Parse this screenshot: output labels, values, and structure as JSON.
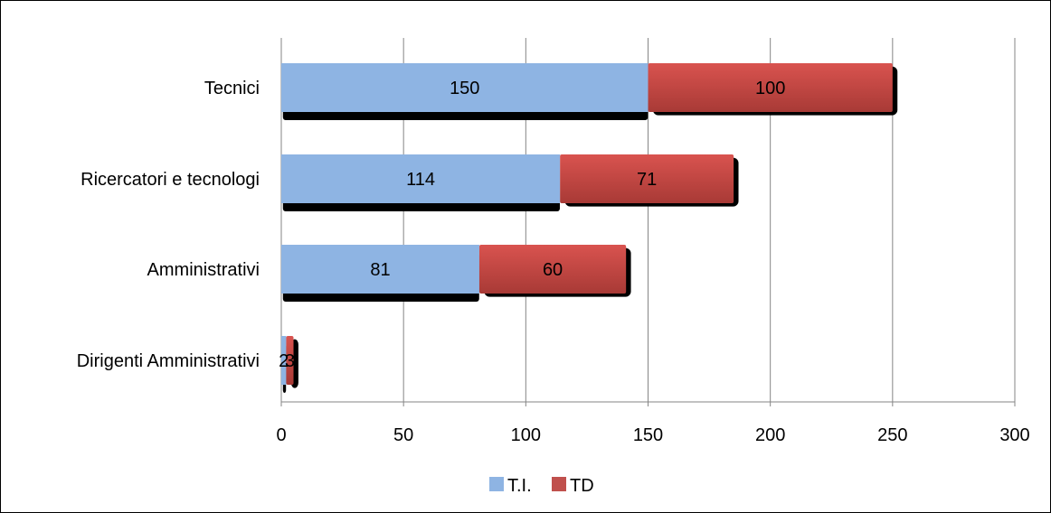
{
  "chart_data": {
    "type": "bar",
    "orientation": "horizontal",
    "stacked": true,
    "categories": [
      "Tecnici",
      "Ricercatori e tecnologi",
      "Amministrativi",
      "Dirigenti Amministrativi"
    ],
    "series": [
      {
        "name": "T.I.",
        "values": [
          150,
          114,
          81,
          2
        ],
        "color": "#8EB4E3"
      },
      {
        "name": "TD",
        "values": [
          100,
          71,
          60,
          3
        ],
        "color": "#C0504D"
      }
    ],
    "xlim": [
      0,
      300
    ],
    "xticks": [
      0,
      50,
      100,
      150,
      200,
      250,
      300
    ],
    "grid": true,
    "legend_position": "bottom"
  }
}
